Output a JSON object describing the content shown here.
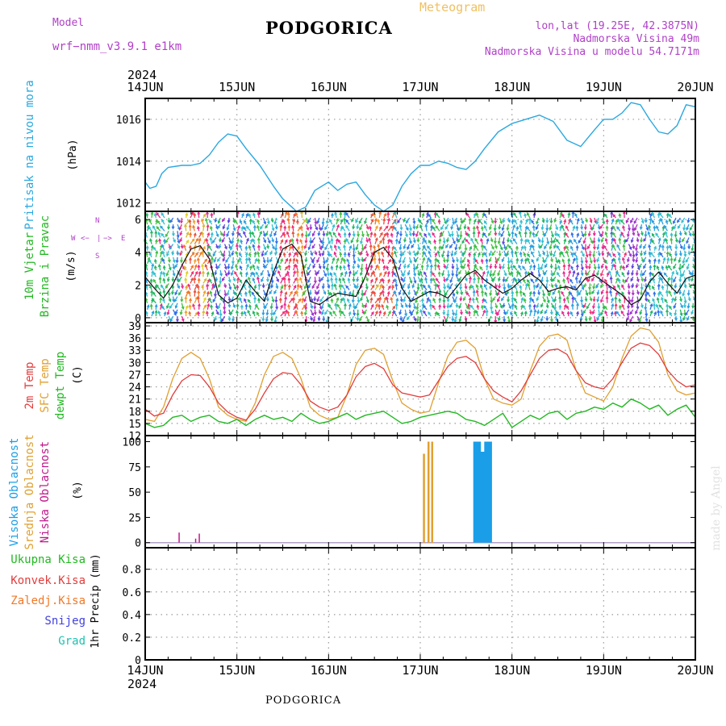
{
  "header": {
    "model_label": "Model",
    "model_name": "wrf−nmm_v3.9.1  e1km",
    "product": "Meteogram",
    "title": "PODGORICA",
    "location": "lon,lat (19.25E, 42.3875N)",
    "elevation": "Nadmorska Visina 49m",
    "model_elevation": "Nadmorska Visina u modelu 54.7171m",
    "year_top": "2024",
    "year_bottom": "2024",
    "footer": "PODGORICA",
    "signature": "made by Angel"
  },
  "colors": {
    "pressure": "#2aa8e0",
    "t2m": "#e23c3c",
    "sfc": "#e0a030",
    "dew": "#22b822",
    "high_cloud": "#1a9ee8",
    "mid_cloud": "#e0a030",
    "low_cloud": "#c0188a",
    "label_magenta": "#b040c8"
  },
  "chart_data": [
    {
      "type": "line",
      "panel": "pressure",
      "ylabel": "(hPa)",
      "side_labels": [
        "Pritisak na nivou mora"
      ],
      "ylim": [
        1011.6,
        1017.0
      ],
      "yticks": [
        1012,
        1014,
        1016
      ],
      "xticks": [
        "14JUN",
        "15JUN",
        "16JUN",
        "17JUN",
        "18JUN",
        "19JUN",
        "20JUN"
      ],
      "grid": true,
      "series": [
        {
          "x": [
            0,
            0.05,
            0.12,
            0.18,
            0.25,
            0.4,
            0.5,
            0.6,
            0.7,
            0.8,
            0.9,
            1.0,
            1.1,
            1.25,
            1.4,
            1.5,
            1.6,
            1.65,
            1.75,
            1.85,
            2.0,
            2.1,
            2.2,
            2.3,
            2.4,
            2.5,
            2.6,
            2.7,
            2.8,
            2.9,
            3.0,
            3.1,
            3.2,
            3.3,
            3.4,
            3.5,
            3.6,
            3.7,
            3.85,
            4.0,
            4.15,
            4.3,
            4.45,
            4.6,
            4.75,
            4.9,
            5.0,
            5.1,
            5.2,
            5.3,
            5.4,
            5.5,
            5.6,
            5.7,
            5.8,
            5.9,
            6.0
          ],
          "values": [
            1013.0,
            1012.7,
            1012.8,
            1013.4,
            1013.7,
            1013.8,
            1013.8,
            1013.9,
            1014.3,
            1014.9,
            1015.3,
            1015.2,
            1014.6,
            1013.8,
            1012.8,
            1012.2,
            1011.8,
            1011.6,
            1011.8,
            1012.6,
            1013.0,
            1012.6,
            1012.9,
            1013.0,
            1012.4,
            1011.9,
            1011.6,
            1011.9,
            1012.8,
            1013.4,
            1013.8,
            1013.8,
            1014.0,
            1013.9,
            1013.7,
            1013.6,
            1014.0,
            1014.6,
            1015.4,
            1015.8,
            1016.0,
            1016.2,
            1015.9,
            1015.0,
            1014.7,
            1015.5,
            1016.0,
            1016.0,
            1016.3,
            1016.8,
            1016.7,
            1016.0,
            1015.4,
            1015.3,
            1015.7,
            1016.7,
            1016.6
          ]
        }
      ]
    },
    {
      "type": "line",
      "panel": "wind",
      "ylabel": "(m/s)",
      "side_labels": [
        "10m Vjetar",
        "Brzina i Pravac"
      ],
      "compass_labels": [
        "W",
        "<−",
        "|",
        "−>",
        "E",
        "S",
        "N"
      ],
      "ylim": [
        -0.3,
        6.5
      ],
      "yticks": [
        0,
        2,
        4,
        6
      ],
      "grid": true,
      "series": [
        {
          "name": "speed",
          "x": [
            0,
            0.1,
            0.2,
            0.3,
            0.4,
            0.5,
            0.6,
            0.7,
            0.8,
            0.9,
            1.0,
            1.1,
            1.2,
            1.3,
            1.4,
            1.5,
            1.6,
            1.7,
            1.8,
            1.9,
            2.0,
            2.1,
            2.2,
            2.3,
            2.4,
            2.5,
            2.6,
            2.7,
            2.8,
            2.9,
            3.0,
            3.1,
            3.2,
            3.3,
            3.4,
            3.5,
            3.6,
            3.7,
            3.8,
            3.9,
            4.0,
            4.1,
            4.2,
            4.3,
            4.4,
            4.5,
            4.6,
            4.7,
            4.8,
            4.9,
            5.0,
            5.1,
            5.2,
            5.3,
            5.4,
            5.5,
            5.6,
            5.7,
            5.8,
            5.9,
            6.0
          ],
          "values": [
            2.5,
            1.8,
            1.2,
            2.0,
            3.2,
            4.2,
            4.4,
            3.6,
            1.4,
            0.9,
            1.2,
            2.3,
            1.6,
            1.0,
            2.8,
            4.2,
            4.5,
            3.8,
            1.0,
            0.8,
            1.2,
            1.5,
            1.4,
            1.3,
            2.5,
            4.0,
            4.3,
            3.6,
            1.8,
            1.0,
            1.3,
            1.6,
            1.5,
            1.2,
            1.9,
            2.6,
            2.9,
            2.3,
            1.9,
            1.5,
            1.8,
            2.3,
            2.7,
            2.3,
            1.6,
            1.8,
            1.9,
            1.7,
            2.4,
            2.6,
            2.2,
            1.8,
            1.4,
            0.8,
            1.1,
            2.2,
            2.8,
            2.1,
            1.5,
            2.4,
            2.6
          ]
        }
      ]
    },
    {
      "type": "line",
      "panel": "temperature",
      "ylabel": "(C)",
      "side_labels": [
        "2m Temp",
        "SFC Temp",
        "dewpt Temp"
      ],
      "ylim": [
        12,
        39.8
      ],
      "yticks": [
        12,
        15,
        18,
        21,
        24,
        27,
        30,
        33,
        36,
        39
      ],
      "grid": true,
      "series": [
        {
          "name": "2m Temp",
          "x": [
            0,
            0.1,
            0.2,
            0.3,
            0.4,
            0.5,
            0.6,
            0.7,
            0.8,
            0.9,
            1.0,
            1.1,
            1.2,
            1.3,
            1.4,
            1.5,
            1.6,
            1.7,
            1.8,
            1.9,
            2.0,
            2.1,
            2.2,
            2.3,
            2.4,
            2.5,
            2.6,
            2.7,
            2.8,
            2.9,
            3.0,
            3.1,
            3.2,
            3.3,
            3.4,
            3.5,
            3.6,
            3.7,
            3.8,
            3.9,
            4.0,
            4.1,
            4.2,
            4.3,
            4.4,
            4.5,
            4.6,
            4.7,
            4.8,
            4.9,
            5.0,
            5.1,
            5.2,
            5.3,
            5.4,
            5.5,
            5.6,
            5.7,
            5.8,
            5.9,
            6.0
          ],
          "values": [
            18.5,
            16.8,
            17.5,
            22.0,
            25.5,
            27.0,
            26.8,
            24.0,
            20.0,
            17.8,
            16.5,
            15.8,
            18.5,
            22.5,
            26.0,
            27.5,
            27.2,
            24.5,
            20.5,
            19.0,
            18.2,
            19.0,
            22.0,
            26.5,
            29.0,
            29.8,
            28.5,
            24.5,
            22.5,
            22.0,
            21.5,
            22.0,
            25.5,
            29.0,
            31.0,
            31.5,
            30.0,
            26.0,
            23.0,
            21.5,
            20.3,
            23.0,
            27.0,
            31.0,
            33.0,
            33.3,
            32.0,
            28.0,
            25.0,
            24.0,
            23.5,
            26.0,
            30.0,
            33.5,
            34.8,
            34.2,
            32.0,
            28.0,
            25.5,
            24.0,
            24.5
          ]
        },
        {
          "name": "SFC Temp",
          "x": [
            0,
            0.1,
            0.2,
            0.3,
            0.4,
            0.5,
            0.6,
            0.7,
            0.8,
            0.9,
            1.0,
            1.1,
            1.2,
            1.3,
            1.4,
            1.5,
            1.6,
            1.7,
            1.8,
            1.9,
            2.0,
            2.1,
            2.2,
            2.3,
            2.4,
            2.5,
            2.6,
            2.7,
            2.8,
            2.9,
            3.0,
            3.1,
            3.2,
            3.3,
            3.4,
            3.5,
            3.6,
            3.7,
            3.8,
            3.9,
            4.0,
            4.1,
            4.2,
            4.3,
            4.4,
            4.5,
            4.6,
            4.7,
            4.8,
            4.9,
            5.0,
            5.1,
            5.2,
            5.3,
            5.4,
            5.5,
            5.6,
            5.7,
            5.8,
            5.9,
            6.0
          ],
          "values": [
            16.0,
            15.5,
            19.0,
            26.0,
            31.0,
            32.5,
            31.0,
            26.0,
            19.0,
            17.0,
            16.0,
            15.5,
            20.0,
            27.0,
            31.5,
            32.5,
            31.0,
            26.0,
            19.0,
            17.0,
            16.0,
            16.5,
            22.0,
            29.5,
            33.0,
            33.5,
            32.0,
            25.5,
            20.0,
            18.5,
            17.5,
            18.0,
            25.0,
            31.5,
            35.0,
            35.5,
            33.5,
            26.0,
            21.0,
            20.0,
            19.5,
            21.0,
            28.0,
            34.0,
            36.5,
            37.0,
            35.5,
            28.0,
            22.5,
            21.5,
            20.5,
            24.0,
            31.0,
            36.5,
            38.5,
            38.0,
            35.0,
            27.0,
            23.0,
            22.0,
            22.5
          ]
        },
        {
          "name": "dewpt Temp",
          "x": [
            0,
            0.1,
            0.2,
            0.3,
            0.4,
            0.5,
            0.6,
            0.7,
            0.8,
            0.9,
            1.0,
            1.1,
            1.2,
            1.3,
            1.4,
            1.5,
            1.6,
            1.7,
            1.8,
            1.9,
            2.0,
            2.1,
            2.2,
            2.3,
            2.4,
            2.5,
            2.6,
            2.7,
            2.8,
            2.9,
            3.0,
            3.1,
            3.2,
            3.3,
            3.4,
            3.5,
            3.6,
            3.7,
            3.8,
            3.9,
            4.0,
            4.1,
            4.2,
            4.3,
            4.4,
            4.5,
            4.6,
            4.7,
            4.8,
            4.9,
            5.0,
            5.1,
            5.2,
            5.3,
            5.4,
            5.5,
            5.6,
            5.7,
            5.8,
            5.9,
            6.0
          ],
          "values": [
            15.0,
            14.0,
            14.5,
            16.5,
            17.0,
            15.5,
            16.5,
            17.0,
            15.5,
            15.0,
            16.0,
            14.5,
            16.0,
            17.0,
            16.0,
            16.5,
            15.5,
            17.5,
            16.0,
            15.0,
            15.5,
            16.5,
            17.5,
            16.0,
            17.0,
            17.5,
            18.0,
            16.5,
            15.0,
            15.5,
            16.5,
            17.0,
            17.5,
            18.0,
            17.5,
            16.0,
            15.5,
            14.5,
            16.0,
            17.5,
            14.0,
            15.5,
            17.0,
            16.0,
            17.5,
            18.0,
            16.0,
            17.5,
            18.0,
            19.0,
            18.5,
            20.0,
            19.0,
            21.0,
            20.0,
            18.5,
            19.5,
            17.0,
            18.5,
            19.5,
            16.5
          ]
        }
      ]
    },
    {
      "type": "bar",
      "panel": "clouds",
      "ylabel": "(%)",
      "side_labels": [
        "Visoka Oblacnost",
        "Srednja Oblacnost",
        "Niska Oblacnost"
      ],
      "ylim": [
        -5,
        106
      ],
      "yticks": [
        0,
        25,
        50,
        75,
        100
      ],
      "grid": false,
      "series": [
        {
          "name": "Visoka Oblacnost",
          "x": [
            3.6,
            3.64,
            3.68,
            3.72,
            3.76
          ],
          "values": [
            100,
            100,
            90,
            100,
            100
          ]
        },
        {
          "name": "Srednja Oblacnost",
          "x": [
            3.04,
            3.09,
            3.13
          ],
          "values": [
            88,
            100,
            100
          ]
        },
        {
          "name": "Niska Oblacnost",
          "x": [
            0.37,
            0.55,
            0.59
          ],
          "values": [
            10,
            4,
            9
          ]
        }
      ]
    },
    {
      "type": "line",
      "panel": "precipitation",
      "ylabel": "1hr Precip (mm)",
      "side_labels": [
        "Ukupna Kisa",
        "Konvek.Kisa",
        "Zaledj.Kisa",
        "Snijeg",
        "Grad"
      ],
      "ylim": [
        0,
        0.99
      ],
      "yticks": [
        0,
        0.2,
        0.4,
        0.6,
        0.8
      ],
      "ytick_labels": [
        "0",
        "0.2",
        "0.4",
        "0.6",
        "0.8"
      ],
      "grid": true,
      "series": []
    }
  ]
}
